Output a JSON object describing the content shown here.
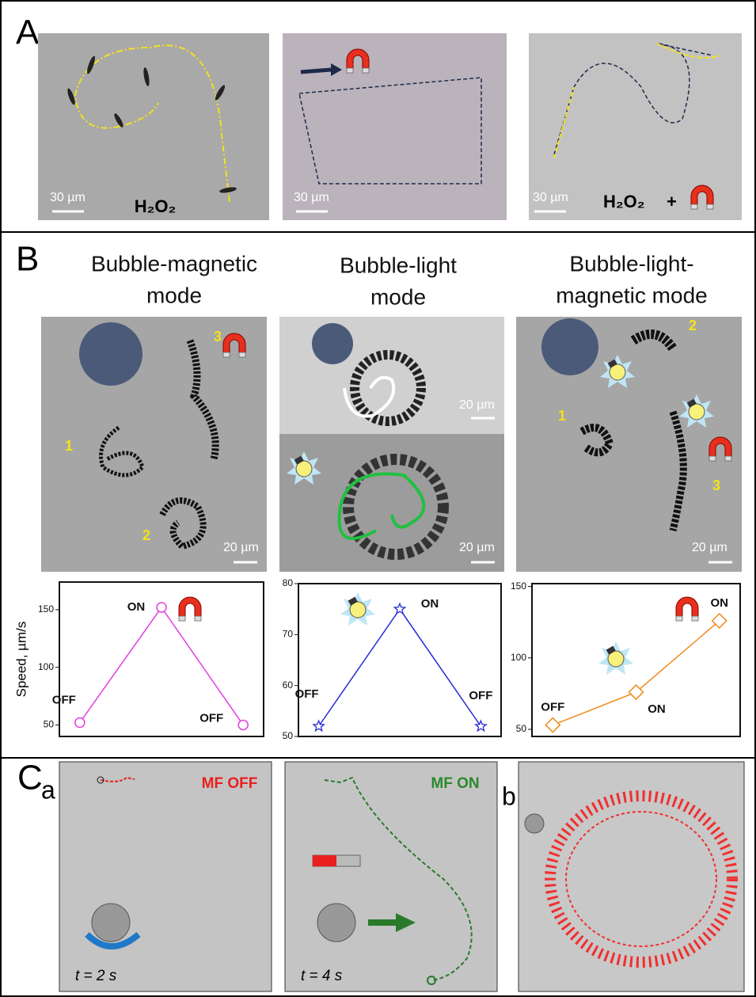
{
  "panel_a": {
    "label": "A",
    "images": [
      {
        "scale_bar": "30 µm",
        "caption": "H₂O₂"
      },
      {
        "scale_bar": "30 µm"
      },
      {
        "scale_bar": "30 µm",
        "caption": "H₂O₂",
        "plus": "+"
      }
    ]
  },
  "panel_b": {
    "label": "B",
    "columns": [
      {
        "title": [
          "Bubble-magnetic",
          "mode"
        ],
        "scale_bars": [
          "20 µm"
        ],
        "numbers": [
          "1",
          "2",
          "3"
        ]
      },
      {
        "title": [
          "Bubble-light",
          "mode"
        ],
        "scale_bars": [
          "20 µm",
          "20 µm"
        ]
      },
      {
        "title": [
          "Bubble-light-",
          "magnetic mode"
        ],
        "scale_bars": [
          "20 µm"
        ],
        "numbers": [
          "1",
          "2",
          "3"
        ]
      }
    ]
  },
  "chart_data": [
    {
      "type": "line",
      "y_label": "Speed, µm/s",
      "categories": [
        null,
        null,
        null
      ],
      "values": [
        52,
        152,
        50
      ],
      "point_labels": [
        "OFF",
        "ON",
        "OFF"
      ],
      "color": "#e040e0",
      "marker": "circle",
      "ylim": [
        40,
        174
      ],
      "yticks": [
        50,
        100,
        150
      ]
    },
    {
      "type": "line",
      "categories": [
        null,
        null,
        null
      ],
      "values": [
        52,
        75,
        52
      ],
      "point_labels": [
        "OFF",
        "ON",
        "OFF"
      ],
      "color": "#2a2ad6",
      "marker": "star",
      "ylim": [
        50,
        80
      ],
      "yticks": [
        50,
        60,
        70,
        80
      ]
    },
    {
      "type": "line",
      "categories": [
        null,
        null,
        null
      ],
      "values": [
        53,
        76,
        126
      ],
      "point_labels": [
        "OFF",
        "ON",
        "ON"
      ],
      "color": "#f08a1a",
      "marker": "diamond",
      "ylim": [
        45,
        152
      ],
      "yticks": [
        50,
        100,
        150
      ]
    }
  ],
  "panel_c": {
    "label": "C",
    "sub_a": "a",
    "sub_b": "b",
    "images": [
      {
        "status": "MF OFF",
        "time": "t = 2 s"
      },
      {
        "status": "MF ON",
        "time": "t = 4 s"
      }
    ]
  }
}
